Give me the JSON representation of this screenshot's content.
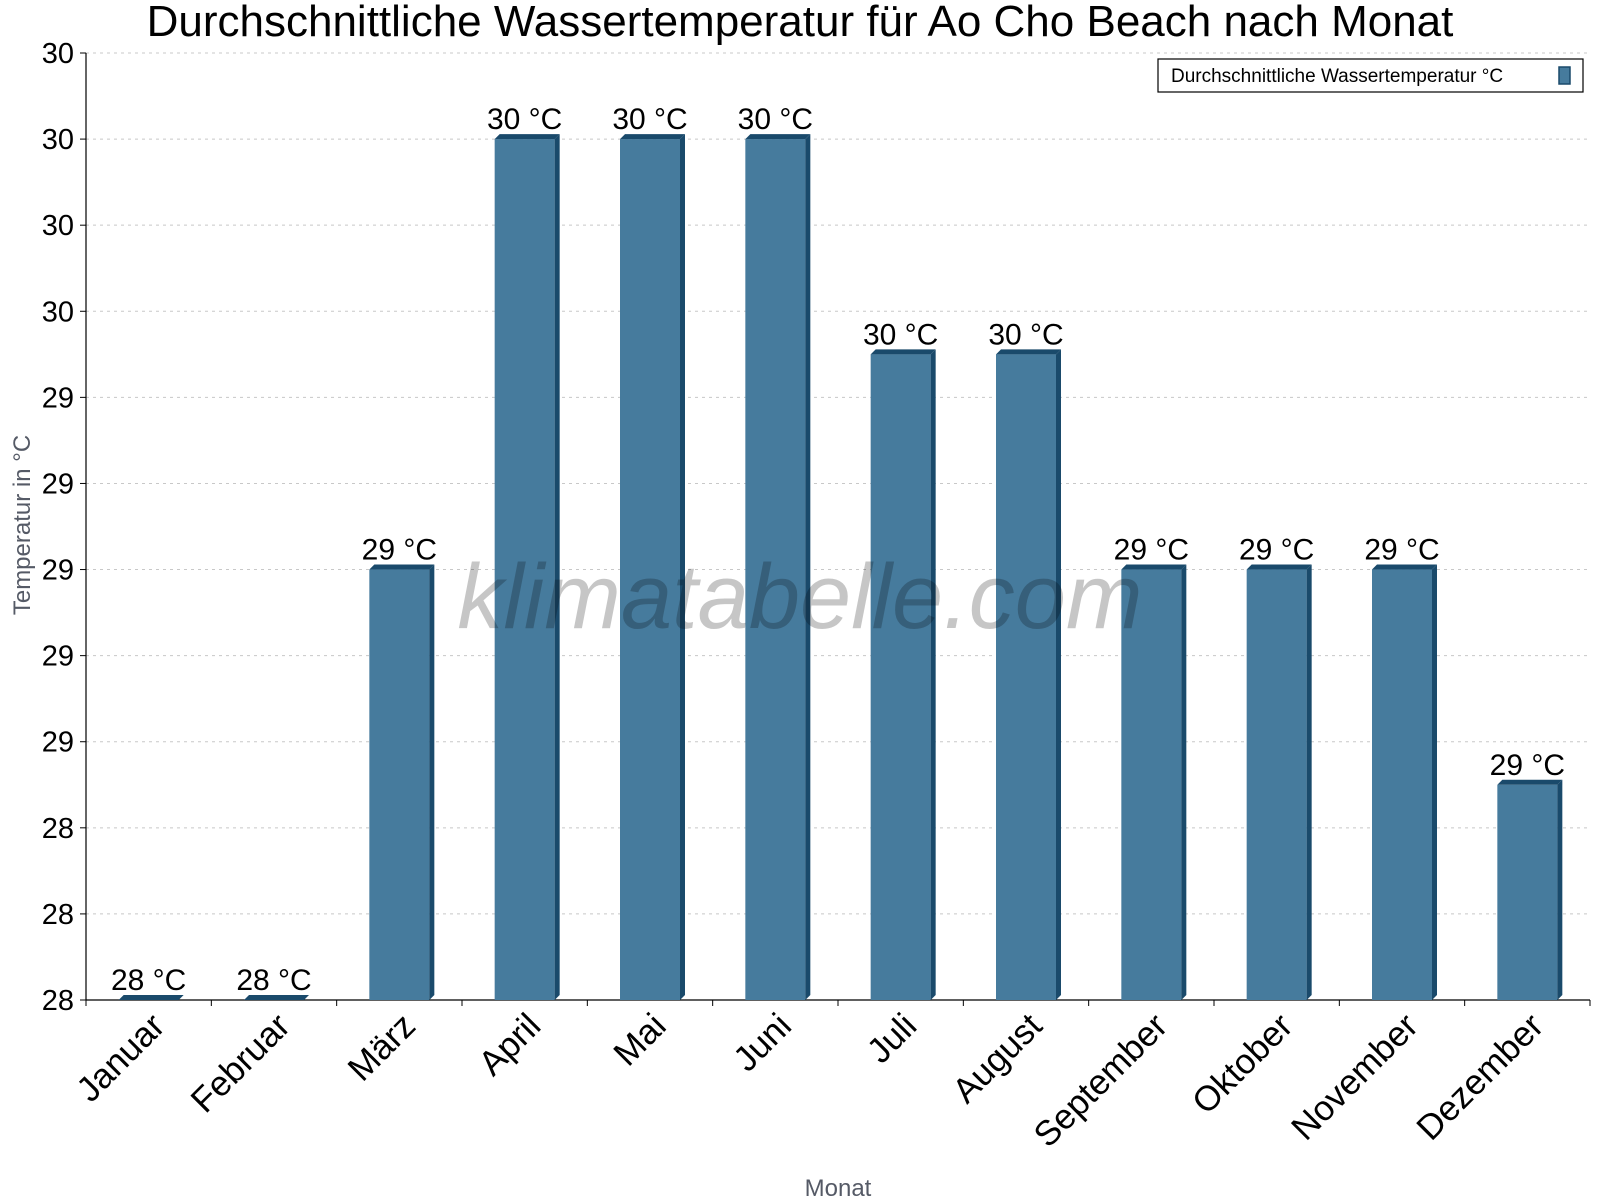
{
  "chart_data": {
    "type": "bar",
    "title": "Durchschnittliche Wassertemperatur für Ao Cho Beach nach Monat",
    "xlabel": "Monat",
    "ylabel": "Temperatur in °C",
    "categories": [
      "Januar",
      "Februar",
      "März",
      "April",
      "Mai",
      "Juni",
      "Juli",
      "August",
      "September",
      "Oktober",
      "November",
      "Dezember"
    ],
    "series": [
      {
        "name": "Durchschnittliche Wassertemperatur °C",
        "values": [
          28.0,
          28.0,
          29.0,
          30.0,
          30.0,
          30.0,
          29.5,
          29.5,
          29.0,
          29.0,
          29.0,
          28.5
        ],
        "data_labels": [
          "28 °C",
          "28 °C",
          "29 °C",
          "30 °C",
          "30 °C",
          "30 °C",
          "30 °C",
          "30 °C",
          "29 °C",
          "29 °C",
          "29 °C",
          "29 °C"
        ]
      }
    ],
    "ylim": [
      28.0,
      30.2
    ],
    "y_ticks": [
      28.0,
      28.2,
      28.4,
      28.6,
      28.8,
      29.0,
      29.2,
      29.4,
      29.6,
      29.8,
      30.0,
      30.2
    ],
    "y_tick_labels": [
      "28",
      "28",
      "28",
      "29",
      "29",
      "29",
      "29",
      "29",
      "30",
      "30",
      "30",
      "30"
    ],
    "grid": true,
    "legend_position": "top-right",
    "colors": {
      "bar_front": "#467b9d",
      "bar_side": "#1a4a6b",
      "grid": "#c8c8c8"
    },
    "watermark": "klimatabelle.com"
  }
}
